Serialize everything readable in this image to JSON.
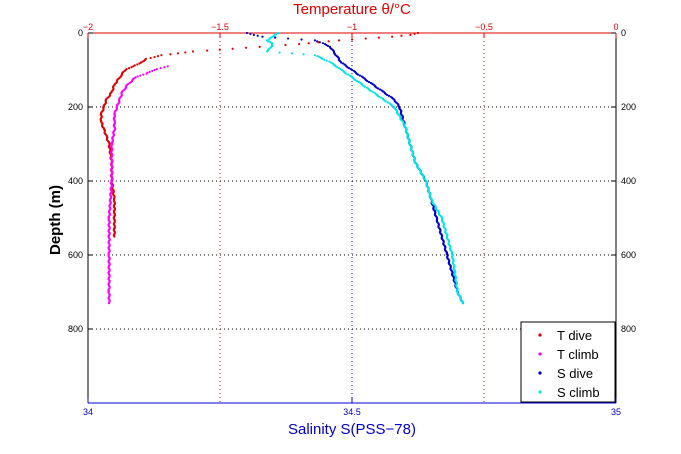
{
  "chart_data": {
    "type": "scatter",
    "title": "",
    "top_axis": {
      "label": "Temperature θ/°C",
      "lim": [
        -2,
        0
      ],
      "ticks": [
        -2,
        -1.5,
        -1,
        -0.5,
        0
      ],
      "tick_labels": [
        "−2",
        "−1.5",
        "−1",
        "−0.5",
        "0"
      ],
      "color": "#e00000"
    },
    "bottom_axis": {
      "label": "Salinity S(PSS−78)",
      "lim": [
        34,
        35
      ],
      "ticks": [
        34,
        34.5,
        35
      ],
      "tick_labels": [
        "34",
        "34.5",
        "35"
      ],
      "color": "#0000cc"
    },
    "y_axis": {
      "label": "Depth (m)",
      "lim": [
        0,
        1000
      ],
      "reversed": true,
      "ticks": [
        0,
        200,
        400,
        600,
        800
      ],
      "tick_labels": [
        "0",
        "200",
        "400",
        "600",
        "800"
      ]
    },
    "grid": true,
    "legend_position": "bottom-right",
    "series": [
      {
        "name": "T dive",
        "axis": "top",
        "color": "#e00000",
        "points": [
          [
            -0.75,
            0
          ],
          [
            -0.78,
            5
          ],
          [
            -0.85,
            10
          ],
          [
            -0.95,
            15
          ],
          [
            -1.05,
            20
          ],
          [
            -1.2,
            30
          ],
          [
            -1.4,
            40
          ],
          [
            -1.6,
            50
          ],
          [
            -1.72,
            60
          ],
          [
            -1.78,
            70
          ],
          [
            -1.8,
            80
          ],
          [
            -1.83,
            90
          ],
          [
            -1.86,
            100
          ],
          [
            -1.88,
            120
          ],
          [
            -1.9,
            140
          ],
          [
            -1.91,
            160
          ],
          [
            -1.93,
            180
          ],
          [
            -1.94,
            200
          ],
          [
            -1.95,
            220
          ],
          [
            -1.95,
            240
          ],
          [
            -1.94,
            260
          ],
          [
            -1.93,
            280
          ],
          [
            -1.92,
            300
          ],
          [
            -1.91,
            350
          ],
          [
            -1.91,
            400
          ],
          [
            -1.9,
            450
          ],
          [
            -1.9,
            500
          ],
          [
            -1.9,
            550
          ]
        ]
      },
      {
        "name": "T climb",
        "axis": "top",
        "color": "#ff00ff",
        "points": [
          [
            -1.7,
            90
          ],
          [
            -1.75,
            100
          ],
          [
            -1.78,
            110
          ],
          [
            -1.82,
            120
          ],
          [
            -1.85,
            140
          ],
          [
            -1.87,
            160
          ],
          [
            -1.88,
            180
          ],
          [
            -1.89,
            200
          ],
          [
            -1.9,
            220
          ],
          [
            -1.9,
            240
          ],
          [
            -1.9,
            260
          ],
          [
            -1.91,
            300
          ],
          [
            -1.91,
            400
          ],
          [
            -1.92,
            500
          ],
          [
            -1.92,
            600
          ],
          [
            -1.92,
            700
          ],
          [
            -1.92,
            730
          ]
        ]
      },
      {
        "name": "S dive",
        "axis": "bottom",
        "color": "#0000cc",
        "points": [
          [
            34.3,
            0
          ],
          [
            34.33,
            10
          ],
          [
            34.43,
            20
          ],
          [
            34.45,
            30
          ],
          [
            34.46,
            40
          ],
          [
            34.47,
            60
          ],
          [
            34.48,
            80
          ],
          [
            34.5,
            100
          ],
          [
            34.52,
            120
          ],
          [
            34.54,
            140
          ],
          [
            34.56,
            160
          ],
          [
            34.58,
            180
          ],
          [
            34.59,
            200
          ],
          [
            34.6,
            250
          ],
          [
            34.61,
            300
          ],
          [
            34.62,
            350
          ],
          [
            34.64,
            400
          ],
          [
            34.65,
            450
          ],
          [
            34.66,
            500
          ],
          [
            34.68,
            600
          ],
          [
            34.7,
            700
          ],
          [
            34.71,
            730
          ]
        ]
      },
      {
        "name": "S climb",
        "axis": "bottom",
        "color": "#00e5e5",
        "points": [
          [
            34.36,
            0
          ],
          [
            34.35,
            10
          ],
          [
            34.34,
            20
          ],
          [
            34.35,
            30
          ],
          [
            34.34,
            50
          ],
          [
            34.43,
            60
          ],
          [
            34.46,
            80
          ],
          [
            34.48,
            100
          ],
          [
            34.5,
            120
          ],
          [
            34.53,
            150
          ],
          [
            34.56,
            180
          ],
          [
            34.58,
            200
          ],
          [
            34.6,
            250
          ],
          [
            34.61,
            300
          ],
          [
            34.62,
            350
          ],
          [
            34.64,
            400
          ],
          [
            34.65,
            450
          ],
          [
            34.67,
            500
          ],
          [
            34.69,
            600
          ],
          [
            34.7,
            700
          ],
          [
            34.71,
            730
          ]
        ]
      }
    ]
  }
}
